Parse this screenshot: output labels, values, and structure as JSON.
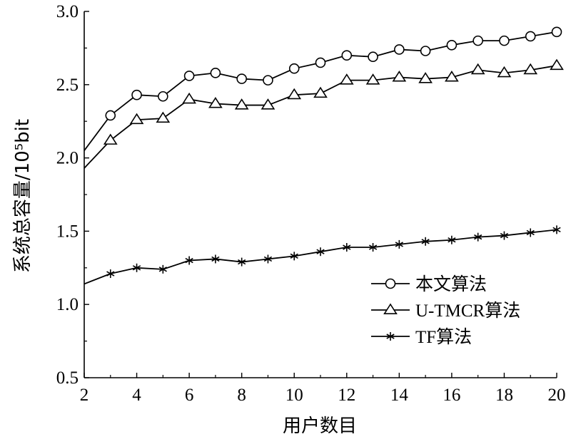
{
  "chart_data": {
    "type": "line",
    "title": "",
    "xlabel": "用户数目",
    "ylabel": "系统总容量/10⁵bit",
    "xlim": [
      2,
      20
    ],
    "ylim": [
      0.5,
      3.0
    ],
    "xticks": [
      2,
      4,
      6,
      8,
      10,
      12,
      14,
      16,
      18,
      20
    ],
    "yticks": [
      0.5,
      1.0,
      1.5,
      2.0,
      2.5,
      3.0
    ],
    "xtick_labels": [
      "2",
      "4",
      "6",
      "8",
      "10",
      "12",
      "14",
      "16",
      "18",
      "20"
    ],
    "ytick_labels": [
      "0.5",
      "1.0",
      "1.5",
      "2.0",
      "2.5",
      "3.0"
    ],
    "grid": false,
    "legend_position": "lower-right",
    "x": [
      2,
      3,
      4,
      5,
      6,
      7,
      8,
      9,
      10,
      11,
      12,
      13,
      14,
      15,
      16,
      17,
      18,
      19,
      20
    ],
    "series": [
      {
        "name": "本文算法",
        "marker": "circle",
        "color": "#000000",
        "values": [
          2.05,
          2.29,
          2.43,
          2.42,
          2.56,
          2.58,
          2.54,
          2.53,
          2.61,
          2.65,
          2.7,
          2.69,
          2.74,
          2.73,
          2.77,
          2.8,
          2.8,
          2.83,
          2.86
        ]
      },
      {
        "name": "U-TMCR算法",
        "marker": "triangle",
        "color": "#000000",
        "values": [
          1.93,
          2.12,
          2.26,
          2.27,
          2.4,
          2.37,
          2.36,
          2.36,
          2.43,
          2.44,
          2.53,
          2.53,
          2.55,
          2.54,
          2.55,
          2.6,
          2.58,
          2.6,
          2.63
        ]
      },
      {
        "name": "TF算法",
        "marker": "asterisk",
        "color": "#000000",
        "values": [
          1.14,
          1.21,
          1.25,
          1.24,
          1.3,
          1.31,
          1.29,
          1.31,
          1.33,
          1.36,
          1.39,
          1.39,
          1.41,
          1.43,
          1.44,
          1.46,
          1.47,
          1.49,
          1.51
        ]
      }
    ]
  }
}
